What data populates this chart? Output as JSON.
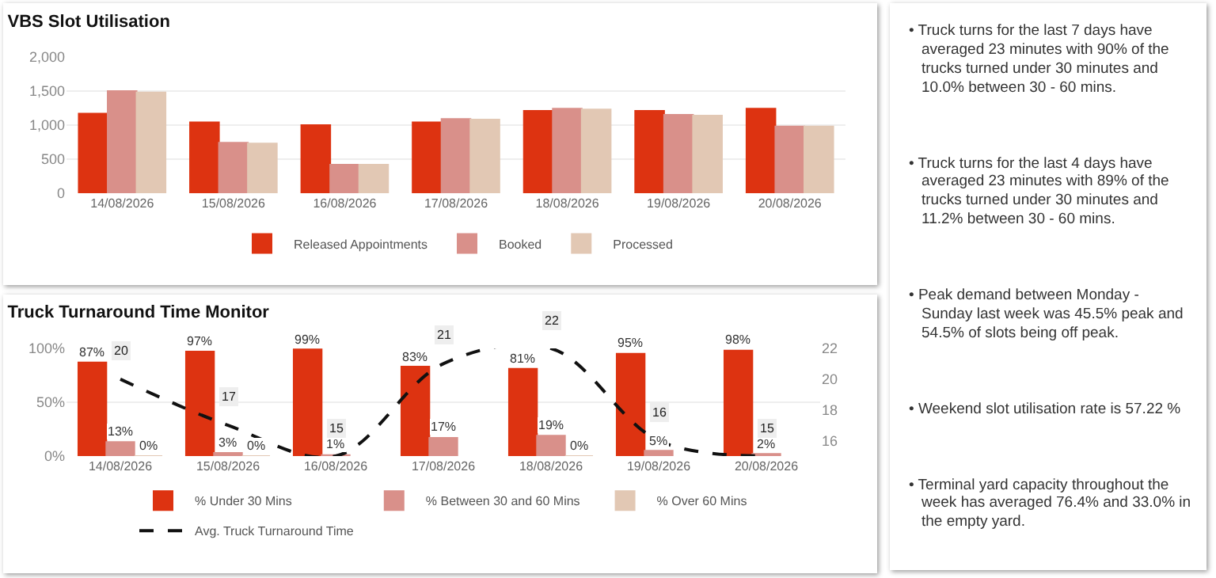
{
  "chart_data": [
    {
      "type": "bar",
      "title": "VBS Slot Utilisation",
      "categories": [
        "14/08/2026",
        "15/08/2026",
        "16/08/2026",
        "17/08/2026",
        "18/08/2026",
        "19/08/2026",
        "20/08/2026"
      ],
      "series": [
        {
          "name": "Released Appointments",
          "color": "#dd3311",
          "values": [
            1170,
            1040,
            1000,
            1040,
            1210,
            1210,
            1240
          ]
        },
        {
          "name": "Booked",
          "color": "#d9908a",
          "values": [
            1500,
            740,
            420,
            1090,
            1240,
            1150,
            980
          ]
        },
        {
          "name": "Processed",
          "color": "#e2c8b4",
          "values": [
            1480,
            730,
            420,
            1080,
            1230,
            1140,
            980
          ]
        }
      ],
      "ylim": [
        0,
        2000
      ],
      "yticks": [
        0,
        500,
        {
          "value": 1000,
          "label": "1,000"
        },
        {
          "value": 1500,
          "label": "1,500"
        },
        {
          "value": 2000,
          "label": "2,000"
        }
      ],
      "grid": "y",
      "legend": "bottom"
    },
    {
      "type": "bar",
      "title": "Truck Turnaround Time Monitor",
      "categories": [
        "14/08/2026",
        "15/08/2026",
        "16/08/2026",
        "17/08/2026",
        "18/08/2026",
        "19/08/2026",
        "20/08/2026"
      ],
      "series": [
        {
          "name": "% Under 30 Mins",
          "color": "#dd3311",
          "values": [
            87,
            97,
            99,
            83,
            81,
            95,
            98
          ],
          "value_labels": [
            "87%",
            "97%",
            "99%",
            "83%",
            "81%",
            "95%",
            "98%"
          ]
        },
        {
          "name": "% Between 30 and 60 Mins",
          "color": "#d9908a",
          "values": [
            13,
            3,
            1,
            17,
            19,
            5,
            2
          ],
          "value_labels": [
            "13%",
            "3%",
            "1%",
            "17%",
            "19%",
            "5%",
            "2%"
          ]
        },
        {
          "name": "% Over 60 Mins",
          "color": "#e2c8b4",
          "values": [
            0,
            0,
            null,
            null,
            0,
            null,
            null
          ],
          "value_labels": [
            "0%",
            "0%",
            null,
            null,
            "0%",
            null,
            null
          ]
        },
        {
          "name": "Avg. Truck Turnaround Time",
          "type": "line",
          "axis": "y2",
          "color": "#111111",
          "line_style": "dashed",
          "values": [
            20,
            17,
            15,
            21,
            22,
            16,
            15
          ],
          "value_labels": [
            "20",
            "17",
            "15",
            "21",
            "22",
            "16",
            "15"
          ]
        }
      ],
      "ylim": [
        0,
        100
      ],
      "yticks": [
        {
          "value": 0,
          "label": "0%"
        },
        {
          "value": 50,
          "label": "50%"
        },
        {
          "value": 100,
          "label": "100%"
        }
      ],
      "y2lim": [
        15,
        22
      ],
      "y2ticks": [
        16,
        18,
        20,
        22
      ],
      "grid": "y",
      "legend": "bottom",
      "marker": "none"
    },
    {
      "type": "other",
      "annotations": [
        "• Truck turns for the last  7  days have averaged 23 minutes with 90% of the trucks turned under 30 minutes and 10.0% between 30 - 60 mins.",
        "• Truck turns for the last 4 days have averaged 23 minutes with 89% of the trucks turned under 30 minutes and 11.2% between 30 - 60 mins.",
        "• Peak demand between Monday - Sunday  last week was 45.5% peak and 54.5% of slots being off peak.",
        "• Weekend slot utilisation rate is 57.22 %",
        "• Terminal yard capacity throughout the week has averaged 76.4% and 33.0%  in the empty yard."
      ]
    }
  ]
}
